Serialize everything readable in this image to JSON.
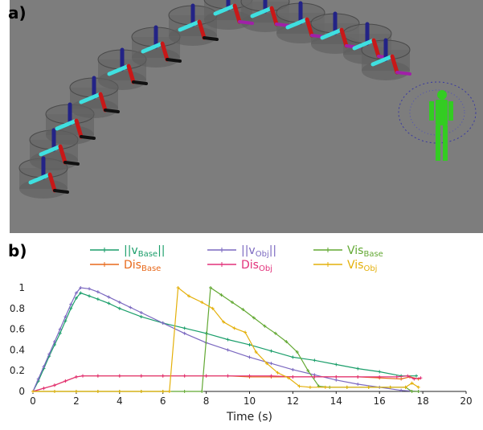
{
  "panels": {
    "a_label": "a)",
    "b_label": "b)"
  },
  "colors": {
    "scene_bg": "#7d7d7d",
    "cylinder": "#5e5e5e",
    "link_cyan": "#3fe0e0",
    "link_red": "#c81818",
    "link_purple": "#a020a8",
    "link_navy": "#232386",
    "link_black": "#111111",
    "person": "#33cc22"
  },
  "chart_data": {
    "type": "line",
    "xlabel": "Time (s)",
    "ylabel": "",
    "xlim": [
      0,
      20
    ],
    "ylim": [
      0,
      1
    ],
    "x_ticks": [
      "0",
      "2",
      "4",
      "6",
      "8",
      "10",
      "12",
      "14",
      "16",
      "18",
      "20"
    ],
    "y_ticks": [
      "0",
      "0.2",
      "0.4",
      "0.6",
      "0.8",
      "1"
    ],
    "legend_placement": "top",
    "legend": [
      {
        "base": "||v",
        "sub": "Base",
        "tail": "||",
        "color": "#1a9e6a"
      },
      {
        "base": "||v",
        "sub": "Obj",
        "tail": "||",
        "color": "#7b68c0"
      },
      {
        "base": "Vis",
        "sub": "Base",
        "tail": "",
        "color": "#62a832"
      },
      {
        "base": "Dis",
        "sub": "Base",
        "tail": "",
        "color": "#e8691b"
      },
      {
        "base": "Dis",
        "sub": "Obj",
        "tail": "",
        "color": "#e2307a"
      },
      {
        "base": "Vis",
        "sub": "Obj",
        "tail": "",
        "color": "#e4b00a"
      }
    ],
    "series": [
      {
        "color": "#1a9e6a",
        "points": [
          [
            0,
            0
          ],
          [
            0.25,
            0.1
          ],
          [
            0.5,
            0.22
          ],
          [
            0.75,
            0.34
          ],
          [
            1,
            0.45
          ],
          [
            1.25,
            0.56
          ],
          [
            1.5,
            0.68
          ],
          [
            1.75,
            0.8
          ],
          [
            2,
            0.9
          ],
          [
            2.2,
            0.95
          ],
          [
            2.6,
            0.92
          ],
          [
            3,
            0.89
          ],
          [
            3.5,
            0.85
          ],
          [
            4,
            0.8
          ],
          [
            5,
            0.72
          ],
          [
            6,
            0.66
          ],
          [
            7,
            0.61
          ],
          [
            8,
            0.56
          ],
          [
            9,
            0.5
          ],
          [
            10,
            0.45
          ],
          [
            11,
            0.39
          ],
          [
            12,
            0.33
          ],
          [
            13,
            0.3
          ],
          [
            14,
            0.26
          ],
          [
            15,
            0.22
          ],
          [
            16,
            0.19
          ],
          [
            17,
            0.15
          ],
          [
            17.7,
            0.15
          ]
        ]
      },
      {
        "color": "#7b68c0",
        "points": [
          [
            0,
            0
          ],
          [
            0.25,
            0.12
          ],
          [
            0.5,
            0.24
          ],
          [
            0.75,
            0.36
          ],
          [
            1,
            0.48
          ],
          [
            1.25,
            0.6
          ],
          [
            1.5,
            0.72
          ],
          [
            1.75,
            0.84
          ],
          [
            2,
            0.95
          ],
          [
            2.2,
            1.0
          ],
          [
            2.6,
            0.99
          ],
          [
            3,
            0.96
          ],
          [
            3.5,
            0.91
          ],
          [
            4,
            0.86
          ],
          [
            4.5,
            0.81
          ],
          [
            5,
            0.76
          ],
          [
            6,
            0.66
          ],
          [
            7,
            0.56
          ],
          [
            8,
            0.47
          ],
          [
            9,
            0.4
          ],
          [
            10,
            0.33
          ],
          [
            11,
            0.27
          ],
          [
            12,
            0.21
          ],
          [
            13,
            0.16
          ],
          [
            14,
            0.11
          ],
          [
            15,
            0.07
          ],
          [
            16,
            0.04
          ],
          [
            17,
            0.01
          ],
          [
            17.8,
            0.0
          ]
        ]
      },
      {
        "color": "#62a832",
        "points": [
          [
            0,
            0
          ],
          [
            1,
            0
          ],
          [
            2,
            0
          ],
          [
            3,
            0
          ],
          [
            4,
            0
          ],
          [
            5,
            0
          ],
          [
            6,
            0
          ],
          [
            7,
            0
          ],
          [
            7.8,
            0
          ],
          [
            8.2,
            1.0
          ],
          [
            8.7,
            0.93
          ],
          [
            9.2,
            0.86
          ],
          [
            9.7,
            0.79
          ],
          [
            10.2,
            0.71
          ],
          [
            10.7,
            0.63
          ],
          [
            11.2,
            0.56
          ],
          [
            11.7,
            0.48
          ],
          [
            12.2,
            0.38
          ],
          [
            12.7,
            0.2
          ],
          [
            13.2,
            0.05
          ],
          [
            13.7,
            0.04
          ],
          [
            14.5,
            0.04
          ],
          [
            15.5,
            0.04
          ],
          [
            16.5,
            0.04
          ],
          [
            17.2,
            0.04
          ],
          [
            17.5,
            0.0
          ],
          [
            17.8,
            0.0
          ]
        ]
      },
      {
        "color": "#e8691b",
        "points": [
          [
            0,
            0
          ],
          [
            0.5,
            0.03
          ],
          [
            1,
            0.06
          ],
          [
            1.5,
            0.1
          ],
          [
            2,
            0.14
          ],
          [
            2.3,
            0.15
          ],
          [
            3,
            0.15
          ],
          [
            4,
            0.15
          ],
          [
            5,
            0.15
          ],
          [
            6,
            0.15
          ],
          [
            7,
            0.15
          ],
          [
            8,
            0.15
          ],
          [
            9,
            0.15
          ],
          [
            10,
            0.14
          ],
          [
            11,
            0.14
          ],
          [
            12,
            0.14
          ],
          [
            13,
            0.14
          ],
          [
            14,
            0.14
          ],
          [
            15,
            0.14
          ],
          [
            16,
            0.13
          ],
          [
            17,
            0.12
          ],
          [
            17.4,
            0.14
          ],
          [
            17.8,
            0.12
          ]
        ]
      },
      {
        "color": "#e2307a",
        "points": [
          [
            0,
            0
          ],
          [
            0.5,
            0.03
          ],
          [
            1,
            0.06
          ],
          [
            1.5,
            0.1
          ],
          [
            2,
            0.14
          ],
          [
            2.3,
            0.15
          ],
          [
            3,
            0.15
          ],
          [
            4,
            0.15
          ],
          [
            5,
            0.15
          ],
          [
            6,
            0.15
          ],
          [
            7,
            0.15
          ],
          [
            8,
            0.15
          ],
          [
            9,
            0.15
          ],
          [
            10,
            0.15
          ],
          [
            11,
            0.15
          ],
          [
            12,
            0.14
          ],
          [
            13,
            0.14
          ],
          [
            14,
            0.14
          ],
          [
            15,
            0.14
          ],
          [
            16,
            0.14
          ],
          [
            16.8,
            0.14
          ],
          [
            17.3,
            0.15
          ],
          [
            17.6,
            0.12
          ],
          [
            17.9,
            0.13
          ]
        ]
      },
      {
        "color": "#e4b00a",
        "points": [
          [
            0,
            0
          ],
          [
            1,
            0
          ],
          [
            2,
            0
          ],
          [
            3,
            0
          ],
          [
            4,
            0
          ],
          [
            5,
            0
          ],
          [
            6,
            0
          ],
          [
            6.3,
            0
          ],
          [
            6.7,
            1.0
          ],
          [
            7.2,
            0.92
          ],
          [
            7.8,
            0.86
          ],
          [
            8.3,
            0.8
          ],
          [
            8.8,
            0.67
          ],
          [
            9.3,
            0.61
          ],
          [
            9.8,
            0.57
          ],
          [
            10.3,
            0.38
          ],
          [
            10.8,
            0.27
          ],
          [
            11.3,
            0.18
          ],
          [
            11.8,
            0.13
          ],
          [
            12.3,
            0.05
          ],
          [
            12.8,
            0.04
          ],
          [
            13.5,
            0.04
          ],
          [
            14.5,
            0.04
          ],
          [
            15.5,
            0.04
          ],
          [
            16.5,
            0.04
          ],
          [
            17.2,
            0.04
          ],
          [
            17.5,
            0.08
          ],
          [
            17.8,
            0.04
          ]
        ]
      }
    ]
  }
}
